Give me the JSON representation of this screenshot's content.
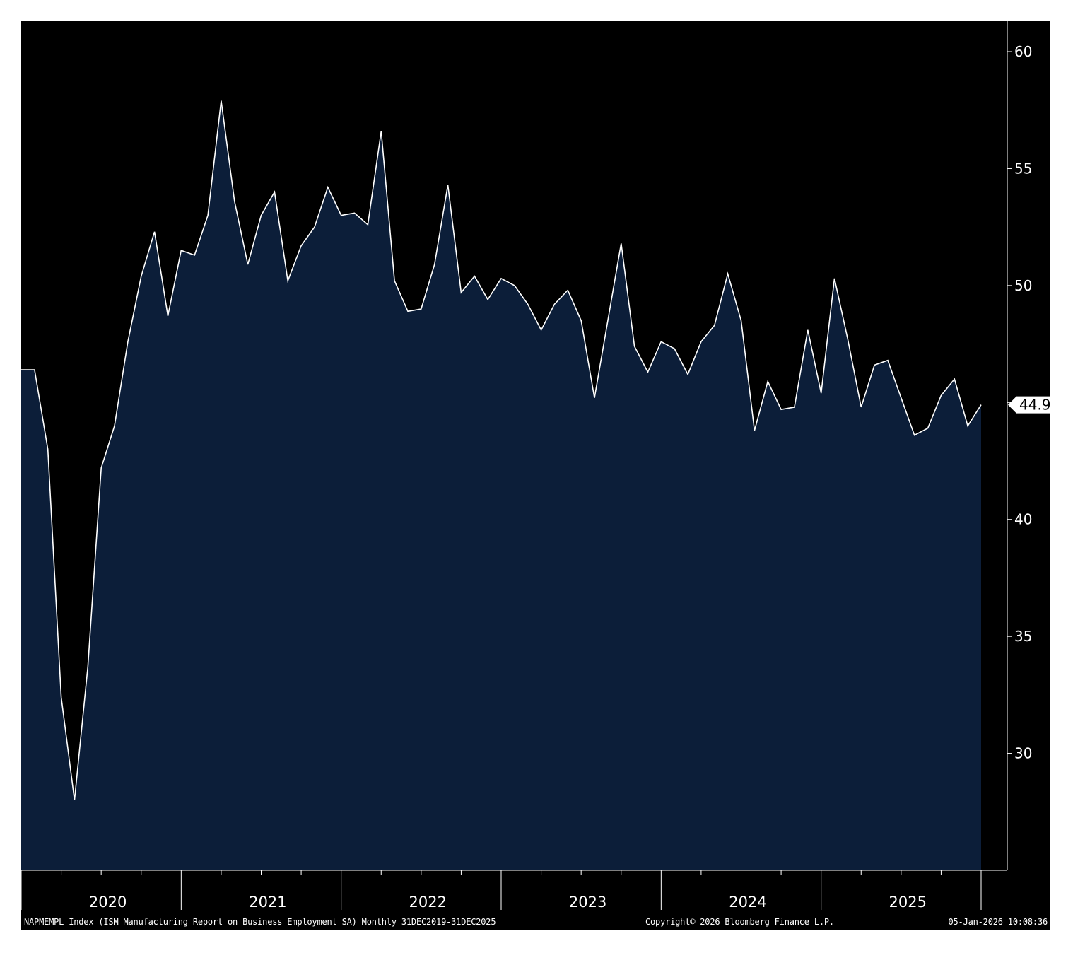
{
  "chart_data": {
    "type": "area",
    "series": [
      {
        "values": [
          46.4,
          46.4,
          43.0,
          32.4,
          28.0,
          33.7,
          42.2,
          44.0,
          47.6,
          50.4,
          52.3,
          48.7,
          51.5,
          51.3,
          53.0,
          57.9,
          53.6,
          50.9,
          53.0,
          54.0,
          50.2,
          51.7,
          52.5,
          54.2,
          53.0,
          53.1,
          52.6,
          56.6,
          50.2,
          48.9,
          49.0,
          50.9,
          54.3,
          49.7,
          50.4,
          49.4,
          50.3,
          50.0,
          49.2,
          48.1,
          49.2,
          49.8,
          48.5,
          45.2,
          48.5,
          51.8,
          47.4,
          46.3,
          47.6,
          47.3,
          46.2,
          47.6,
          48.3,
          50.5,
          48.5,
          43.8,
          45.9,
          44.7,
          44.8,
          48.1,
          45.4,
          50.3,
          47.7,
          44.8,
          46.6,
          46.8,
          45.2,
          43.6,
          43.9,
          45.3,
          46.0,
          44.0,
          44.9
        ]
      }
    ],
    "x_start": "2019-12",
    "x_end": "2025-12",
    "x_ticks": [
      "2020",
      "2021",
      "2022",
      "2023",
      "2024",
      "2025"
    ],
    "y_ticks": [
      30,
      35,
      40,
      45,
      50,
      55,
      60
    ],
    "y_tick_labels": [
      "30",
      "35",
      "40",
      "",
      "50",
      "55",
      "60"
    ],
    "ylim": [
      25,
      61.3
    ],
    "last_value_label": "44.9",
    "grid": false,
    "y_axis_side": "right",
    "colors": {
      "background": "#000000",
      "fill": "#0c1e39",
      "line": "#ffffff",
      "text": "#ffffff"
    }
  },
  "footer": {
    "source": "NAPMEMPL Index (ISM Manufacturing Report on Business Employment SA) Monthly 31DEC2019-31DEC2025",
    "copyright": "Copyright© 2026 Bloomberg Finance L.P.",
    "timestamp": "05-Jan-2026 10:08:36"
  }
}
